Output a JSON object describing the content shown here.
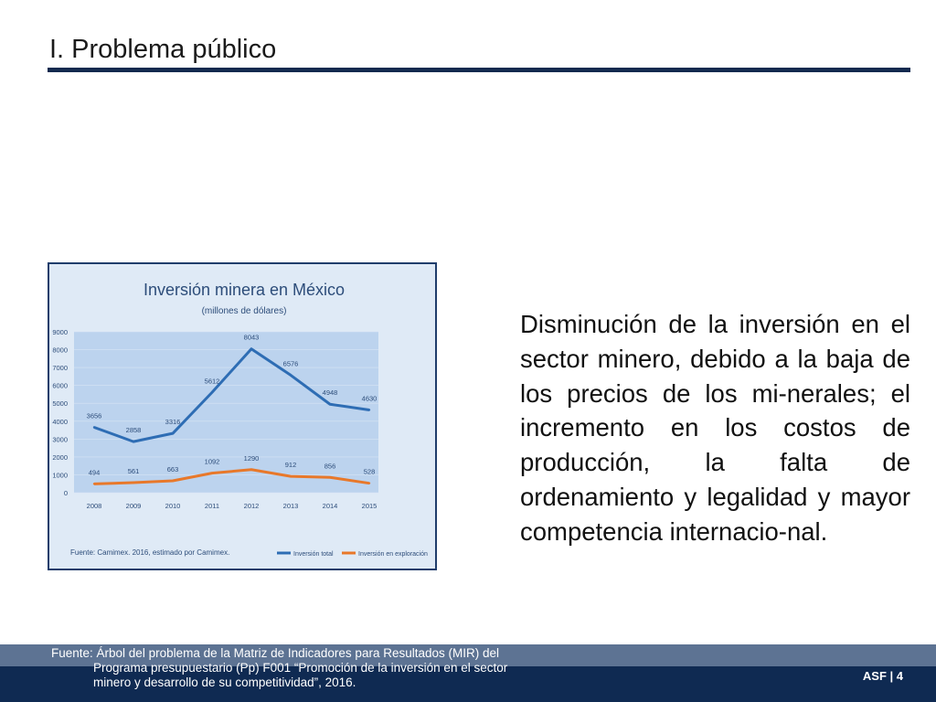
{
  "slide": {
    "title": "I. Problema público",
    "body_text": "Disminución de la inversión en el sector minero, debido a la baja de los precios de los mi-nerales; el incremento en los costos de producción, la falta de ordenamiento y legalidad y mayor competencia internacio-nal."
  },
  "footer": {
    "source_line1": "Fuente: Árbol del problema de la Matriz de Indicadores para Resultados (MIR) del",
    "source_line2": "Programa presupuestario (Pp) F001 “Promoción de la inversión en el sector",
    "source_line3": "minero y desarrollo de su competitividad”, 2016.",
    "page_label": "ASF | 4"
  },
  "chart_data": {
    "type": "line",
    "title": "Inversión minera en México",
    "subtitle": "(millones de dólares)",
    "x": [
      "2008",
      "2009",
      "2010",
      "2011",
      "2012",
      "2013",
      "2014",
      "2015"
    ],
    "series": [
      {
        "name": "Inversión total",
        "values": [
          3656,
          2858,
          3316,
          5612,
          8043,
          6576,
          4948,
          4630
        ],
        "color": "#2e6db4"
      },
      {
        "name": "Inversión en exploración",
        "values": [
          494,
          561,
          663,
          1092,
          1290,
          912,
          856,
          528
        ],
        "color": "#e8782a"
      }
    ],
    "yticks": [
      "0",
      "1000",
      "2000",
      "3000",
      "4000",
      "5000",
      "6000",
      "7000",
      "8000",
      "9000"
    ],
    "ylim": [
      0,
      9000
    ],
    "source": "Fuente: Camimex. 2016, estimado por Camimex.",
    "legend_position": "bottom-right",
    "plot_background": "#bcd3ee",
    "outer_background": "#dfeaf6"
  }
}
